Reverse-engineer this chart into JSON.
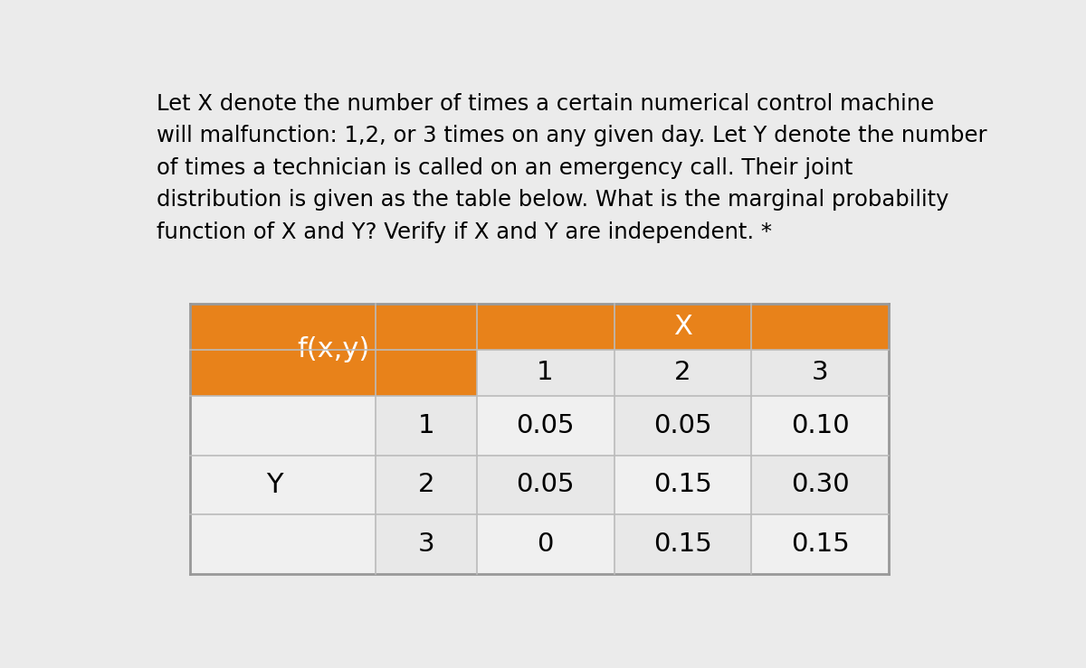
{
  "paragraph_text": "Let X denote the number of times a certain numerical control machine\nwill malfunction: 1,2, or 3 times on any given day. Let Y denote the number\nof times a technician is called on an emergency call. Their joint\ndistribution is given as the table below. What is the marginal probability\nfunction of X and Y? Verify if X and Y are independent. *",
  "table": {
    "fxy_label": "f(x,y)",
    "x_label": "X",
    "y_label": "Y",
    "x_values": [
      "1",
      "2",
      "3"
    ],
    "y_values": [
      "1",
      "2",
      "3"
    ],
    "data": [
      [
        "0.05",
        "0.05",
        "0.10"
      ],
      [
        "0.05",
        "0.15",
        "0.30"
      ],
      [
        "0",
        "0.15",
        "0.15"
      ]
    ],
    "orange_color": "#E8821A",
    "light_gray": "#DCDCDC",
    "white": "#F5F5F5",
    "cell_bg1": "#E8E8E8",
    "cell_bg2": "#F0F0F0"
  },
  "background_color": "#EBEBEB",
  "text_color": "#000000",
  "font_size_paragraph": 17.5,
  "font_size_table_data": 21,
  "font_size_header": 22
}
